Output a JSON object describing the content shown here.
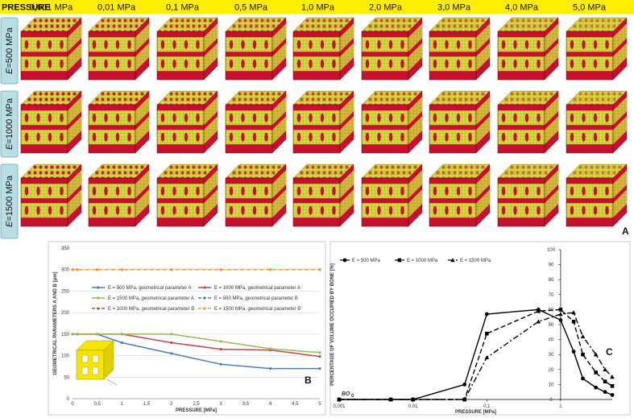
{
  "header": {
    "label": "PRESSURE",
    "pressures": [
      "0,001 MPa",
      "0,01 MPa",
      "0,1 MPa",
      "0,5 MPa",
      "1,0 MPa",
      "2,0 MPa",
      "3,0 MPa",
      "4,0 MPa",
      "5,0 MPa"
    ]
  },
  "rows": [
    {
      "prefix": "E",
      "text": "=500 MPa"
    },
    {
      "prefix": "E",
      "text": "=1000 MPa"
    },
    {
      "prefix": "E",
      "text": "=1500 MPa"
    }
  ],
  "panel_labels": {
    "a": "A",
    "b": "B",
    "c": "C"
  },
  "colors": {
    "header_bg": "#ffee00",
    "cube_yellow": "#cfd23a",
    "cube_red": "#c8102e",
    "row_label_bg": "#b9dfe6"
  },
  "chart_data": [
    {
      "type": "line",
      "ylabel": "GEOMETRICAL PARAMETERS A AND B [μm]",
      "xlabel": "PRESSURE [MPa]",
      "xlim": [
        0,
        5
      ],
      "ylim": [
        0,
        350
      ],
      "xticks": [
        "0",
        "0,5",
        "1",
        "1,5",
        "2",
        "2,5",
        "3",
        "3,5",
        "4",
        "4,5",
        "5"
      ],
      "yticks": [
        "0",
        "50",
        "100",
        "150",
        "200",
        "250",
        "300",
        "350"
      ],
      "legend": "center-right",
      "grid": true,
      "series": [
        {
          "name": "E = 500 MPa, geometrical parameter A",
          "color": "#4a7ebb",
          "dash": false,
          "x": [
            0,
            0.1,
            0.5,
            1,
            2,
            3,
            4,
            5
          ],
          "y": [
            150,
            150,
            150,
            130,
            105,
            80,
            70,
            70
          ]
        },
        {
          "name": "E = 1000 MPa, geometrical parameter A",
          "color": "#be4b48",
          "dash": false,
          "x": [
            0,
            0.1,
            0.5,
            1,
            2,
            3,
            4,
            5
          ],
          "y": [
            150,
            150,
            150,
            150,
            130,
            115,
            113,
            98
          ]
        },
        {
          "name": "E = 1500 MPa, geometrical parameter A",
          "color": "#98b954",
          "dash": false,
          "x": [
            0,
            0.1,
            0.5,
            1,
            2,
            3,
            4,
            5
          ],
          "y": [
            150,
            150,
            150,
            150,
            150,
            133,
            116,
            107
          ]
        },
        {
          "name": "E = 500 MPa, geometrical parameter B",
          "color": "#4a7ebb",
          "dash": true,
          "x": [
            0,
            0.1,
            0.5,
            1,
            2,
            3,
            4,
            5
          ],
          "y": [
            300,
            300,
            300,
            300,
            300,
            300,
            300,
            300
          ]
        },
        {
          "name": "E = 1000 MPa, geometrical parameter B",
          "color": "#be4b48",
          "dash": true,
          "x": [
            0,
            0.1,
            0.5,
            1,
            2,
            3,
            4,
            5
          ],
          "y": [
            300,
            300,
            300,
            300,
            300,
            300,
            300,
            300
          ]
        },
        {
          "name": "E = 1500 MPa, geometrical parameter B",
          "color": "#f79646",
          "dash": true,
          "x": [
            0,
            0.1,
            0.5,
            1,
            2,
            3,
            4,
            5
          ],
          "y": [
            300,
            300,
            300,
            300,
            300,
            300,
            300,
            300
          ]
        }
      ]
    },
    {
      "type": "line",
      "ylabel": "PERCENTAGE OF VOLUME OCCUPIED BY BONE [%]",
      "xlabel": "PRESSURE [MPa]",
      "xscale": "log",
      "xlim": [
        0.001,
        5
      ],
      "ylim": [
        0,
        100
      ],
      "xticks": [
        "0,001",
        "0,01",
        "0,1",
        "1"
      ],
      "yticks": [
        "0",
        "10",
        "20",
        "30",
        "40",
        "50",
        "60",
        "70",
        "80",
        "90",
        "100"
      ],
      "legend": "top-left",
      "annotation": "BO",
      "annotation_sub": "0",
      "series": [
        {
          "name": "E = 500 MPa",
          "marker": "circle",
          "dash": "solid",
          "x": [
            0.001,
            0.005,
            0.01,
            0.05,
            0.1,
            0.5,
            1,
            1.5,
            2,
            3,
            4,
            5
          ],
          "y": [
            0,
            0,
            0,
            10,
            57,
            60,
            53,
            32,
            14,
            8,
            5,
            3
          ]
        },
        {
          "name": "E = 1000 MPa",
          "marker": "square",
          "dash": "dashed",
          "x": [
            0.001,
            0.005,
            0.01,
            0.05,
            0.1,
            0.5,
            1,
            1.5,
            2,
            3,
            4,
            5
          ],
          "y": [
            0,
            0,
            0,
            0,
            44,
            59,
            60,
            52,
            30,
            18,
            12,
            9
          ]
        },
        {
          "name": "E = 1500 MPa",
          "marker": "triangle",
          "dash": "dashdot",
          "x": [
            0.001,
            0.005,
            0.01,
            0.05,
            0.1,
            0.5,
            1,
            1.5,
            2,
            3,
            4,
            5
          ],
          "y": [
            0,
            0,
            0,
            0,
            28,
            52,
            57,
            58,
            42,
            30,
            20,
            15
          ]
        }
      ]
    }
  ]
}
